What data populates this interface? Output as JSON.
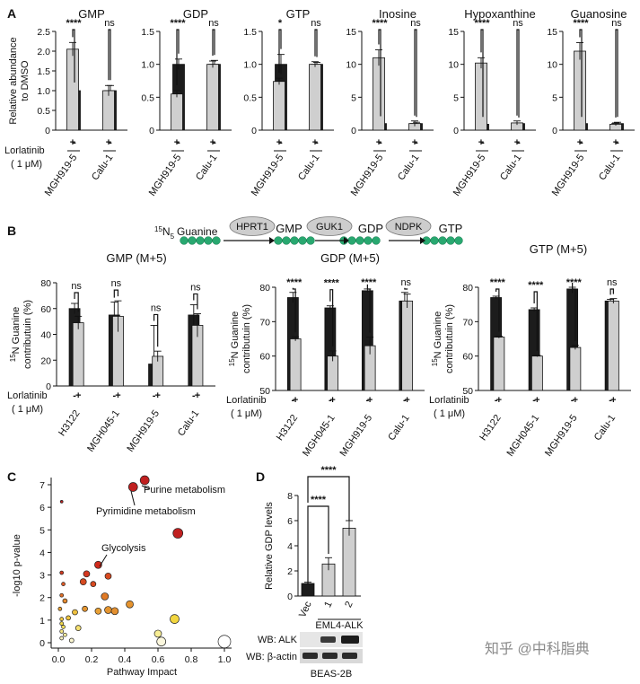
{
  "panelA": {
    "letter": "A",
    "ylabel": [
      "Relative abundance",
      "to DMSO"
    ],
    "drug_label": "Lorlatinib",
    "dose_label": "( 1 μM)",
    "pm": [
      "-",
      "+",
      "-",
      "+"
    ],
    "groups": [
      "MGH919-5",
      "Calu-1"
    ],
    "charts": [
      {
        "title": "GMP",
        "type": "bar",
        "ylim": [
          0,
          2.5
        ],
        "yticks": [
          0,
          0.5,
          1.0,
          1.5,
          2.0,
          2.5
        ],
        "tick_labels": [
          "0",
          "0.5",
          "1.0",
          "1.5",
          "2.0",
          "2.5"
        ],
        "values": [
          1.0,
          2.05,
          1.0,
          1.0
        ],
        "errors": [
          0.07,
          0.17,
          0.13,
          0.13
        ],
        "sig": [
          "****",
          "ns"
        ]
      },
      {
        "title": "GDP",
        "type": "bar",
        "ylim": [
          0,
          1.5
        ],
        "yticks": [
          0,
          0.5,
          1.0,
          1.5
        ],
        "tick_labels": [
          "0",
          "0.5",
          "1.0",
          "1.5"
        ],
        "values": [
          1.0,
          0.55,
          1.0,
          1.0
        ],
        "errors": [
          0.08,
          0.05,
          0.06,
          0.05
        ],
        "sig": [
          "****",
          "ns"
        ]
      },
      {
        "title": "GTP",
        "type": "bar",
        "ylim": [
          0,
          1.5
        ],
        "yticks": [
          0,
          0.5,
          1.0,
          1.5
        ],
        "tick_labels": [
          "0",
          "0.5",
          "1.0",
          "1.5"
        ],
        "values": [
          1.0,
          0.74,
          1.0,
          1.0
        ],
        "errors": [
          0.15,
          0.05,
          0.03,
          0.04
        ],
        "sig": [
          "*",
          "ns"
        ]
      },
      {
        "title": "Inosine",
        "type": "bar",
        "ylim": [
          0,
          15
        ],
        "yticks": [
          0,
          5,
          10,
          15
        ],
        "tick_labels": [
          "0",
          "5",
          "10",
          "15"
        ],
        "values": [
          1.0,
          11.0,
          1.0,
          1.0
        ],
        "errors": [
          0.3,
          1.2,
          0.2,
          0.4
        ],
        "sig": [
          "****",
          "ns"
        ]
      },
      {
        "title": "Hypoxanthine",
        "type": "bar",
        "ylim": [
          0,
          15
        ],
        "yticks": [
          0,
          5,
          10,
          15
        ],
        "tick_labels": [
          "0",
          "5",
          "10",
          "15"
        ],
        "values": [
          0.9,
          10.2,
          1.0,
          1.1
        ],
        "errors": [
          0.3,
          0.8,
          0.1,
          0.3
        ],
        "sig": [
          "****",
          "ns"
        ]
      },
      {
        "title": "Guanosine",
        "type": "bar",
        "ylim": [
          0,
          15
        ],
        "yticks": [
          0,
          5,
          10,
          15
        ],
        "tick_labels": [
          "0",
          "5",
          "10",
          "15"
        ],
        "values": [
          1.0,
          12.0,
          1.0,
          0.9
        ],
        "errors": [
          0.2,
          1.3,
          0.2,
          0.2
        ],
        "sig": [
          "****",
          "ns"
        ]
      }
    ]
  },
  "panelB": {
    "letter": "B",
    "pathway": {
      "label_start": "Guanine",
      "isotope_mass": "15",
      "isotope_element": "N",
      "isotope_count": "5",
      "enzymes": [
        "HPRT1",
        "GUK1",
        "NDPK"
      ],
      "metabolites": [
        "GMP",
        "GDP",
        "GTP"
      ]
    },
    "ylabel_isotope": "15",
    "ylabel_rest": "N Guanine",
    "ylabel_line2": "contributuin (%)",
    "drug_label": "Lorlatinib",
    "dose_label": "( 1 μM)",
    "pm": [
      "-",
      "+",
      "-",
      "+",
      "-",
      "+",
      "-",
      "+"
    ],
    "groups": [
      "H3122",
      "MGH045-1",
      "MGH919-5",
      "Calu-1"
    ],
    "charts": [
      {
        "title": "GMP (M+5)",
        "type": "bar",
        "ylim": [
          0,
          80
        ],
        "yticks": [
          0,
          20,
          40,
          60,
          80
        ],
        "tick_labels": [
          "0",
          "20",
          "40",
          "60",
          "80"
        ],
        "values": [
          60,
          49,
          55,
          54,
          17,
          23,
          55,
          47
        ],
        "errors": [
          4,
          5,
          10,
          12,
          30,
          4,
          8,
          9
        ],
        "sig": [
          "ns",
          "ns",
          "ns",
          "ns"
        ]
      },
      {
        "title": "GDP (M+5)",
        "type": "bar",
        "ylim": [
          50,
          80
        ],
        "yticks": [
          50,
          60,
          70,
          80
        ],
        "tick_labels": [
          "50",
          "60",
          "70",
          "80"
        ],
        "values": [
          77,
          65,
          74,
          60,
          79,
          63,
          76,
          76
        ],
        "errors": [
          1.5,
          0.6,
          0.6,
          1.5,
          0.5,
          2.5,
          2.5,
          2.0
        ],
        "sig": [
          "****",
          "****",
          "****",
          "ns"
        ]
      },
      {
        "title": "GTP (M+5)",
        "type": "bar",
        "ylim": [
          50,
          80
        ],
        "yticks": [
          50,
          60,
          70,
          80
        ],
        "tick_labels": [
          "50",
          "60",
          "70",
          "80"
        ],
        "values": [
          77,
          65.5,
          73.5,
          60,
          79.5,
          62.5,
          76,
          76
        ],
        "errors": [
          0.4,
          0.3,
          0.5,
          0.2,
          1.2,
          0.6,
          0.5,
          0.7
        ],
        "sig": [
          "****",
          "****",
          "****",
          "ns"
        ]
      }
    ]
  },
  "panelC": {
    "letter": "C",
    "chart_type": "scatter",
    "xlabel": "Pathway Impact",
    "ylabel": "-log10 p-value",
    "xlim": [
      0,
      1.0
    ],
    "ylim": [
      0,
      7
    ],
    "xticks": [
      0,
      0.2,
      0.4,
      0.6,
      0.8,
      1.0
    ],
    "xtick_labels": [
      "0.0",
      "0.2",
      "0.4",
      "0.6",
      "0.8",
      "1.0"
    ],
    "yticks": [
      0,
      1,
      2,
      3,
      4,
      5,
      6,
      7
    ],
    "tick_labels": [
      "0",
      "1",
      "2",
      "3",
      "4",
      "5",
      "6",
      "7"
    ],
    "annotations": [
      "Purine metabolism",
      "Pyrimidine metabolism",
      "Glycolysis"
    ],
    "points": [
      {
        "x": 0.52,
        "y": 7.2,
        "size": 5,
        "color": "#c02020"
      },
      {
        "x": 0.45,
        "y": 6.9,
        "size": 5,
        "color": "#c02020"
      },
      {
        "x": 0.72,
        "y": 4.85,
        "size": 5.5,
        "color": "#c02020"
      },
      {
        "x": 0.02,
        "y": 6.25,
        "size": 1.5,
        "color": "#c02020"
      },
      {
        "x": 0.24,
        "y": 3.45,
        "size": 4,
        "color": "#d02a1c"
      },
      {
        "x": 0.17,
        "y": 3.05,
        "size": 3.5,
        "color": "#d43820"
      },
      {
        "x": 0.15,
        "y": 2.7,
        "size": 3.5,
        "color": "#d54a20"
      },
      {
        "x": 0.3,
        "y": 2.95,
        "size": 3.5,
        "color": "#d84a20"
      },
      {
        "x": 0.21,
        "y": 2.6,
        "size": 3,
        "color": "#d84a20"
      },
      {
        "x": 0.02,
        "y": 3.1,
        "size": 2,
        "color": "#d23a20"
      },
      {
        "x": 0.03,
        "y": 2.6,
        "size": 2,
        "color": "#dd5a25"
      },
      {
        "x": 0.02,
        "y": 2.1,
        "size": 2,
        "color": "#e07028"
      },
      {
        "x": 0.28,
        "y": 2.05,
        "size": 4,
        "color": "#e07a26"
      },
      {
        "x": 0.04,
        "y": 1.85,
        "size": 2.5,
        "color": "#e38a30"
      },
      {
        "x": 0.43,
        "y": 1.7,
        "size": 4,
        "color": "#e5932d"
      },
      {
        "x": 0.01,
        "y": 1.5,
        "size": 2,
        "color": "#e8a035"
      },
      {
        "x": 0.16,
        "y": 1.5,
        "size": 3,
        "color": "#e49530"
      },
      {
        "x": 0.24,
        "y": 1.4,
        "size": 3.5,
        "color": "#e8a035"
      },
      {
        "x": 0.3,
        "y": 1.45,
        "size": 4,
        "color": "#e49530"
      },
      {
        "x": 0.34,
        "y": 1.4,
        "size": 4,
        "color": "#e39030"
      },
      {
        "x": 0.1,
        "y": 1.35,
        "size": 3,
        "color": "#eec040"
      },
      {
        "x": 0.06,
        "y": 1.1,
        "size": 2.5,
        "color": "#efc53f"
      },
      {
        "x": 0.02,
        "y": 1.05,
        "size": 2,
        "color": "#f0c840"
      },
      {
        "x": 0.7,
        "y": 1.05,
        "size": 5,
        "color": "#f2d640"
      },
      {
        "x": 0.02,
        "y": 0.85,
        "size": 2,
        "color": "#f2d94a"
      },
      {
        "x": 0.03,
        "y": 0.7,
        "size": 2,
        "color": "#f4df5a"
      },
      {
        "x": 0.12,
        "y": 0.65,
        "size": 3,
        "color": "#f5e070"
      },
      {
        "x": 0.02,
        "y": 0.5,
        "size": 2,
        "color": "#f6e680"
      },
      {
        "x": 0.04,
        "y": 0.35,
        "size": 2,
        "color": "#f7eb9a"
      },
      {
        "x": 0.6,
        "y": 0.4,
        "size": 4,
        "color": "#f8ee95"
      },
      {
        "x": 0.02,
        "y": 0.2,
        "size": 2,
        "color": "#faf3c0"
      },
      {
        "x": 0.08,
        "y": 0.1,
        "size": 2.5,
        "color": "#fbf6d0"
      },
      {
        "x": 0.62,
        "y": 0.05,
        "size": 5,
        "color": "#fcf8de"
      },
      {
        "x": 1.0,
        "y": 0.05,
        "size": 7,
        "color": "#ffffff"
      }
    ]
  },
  "panelD": {
    "letter": "D",
    "chart_type": "bar",
    "ylabel": "Relative GDP levels",
    "ylim": [
      0,
      8
    ],
    "yticks": [
      0,
      2,
      4,
      6,
      8
    ],
    "tick_labels": [
      "0",
      "2",
      "4",
      "6",
      "8"
    ],
    "categories": [
      "Vec",
      "1",
      "2"
    ],
    "values": [
      1.0,
      2.55,
      5.4
    ],
    "errors": [
      0.1,
      0.5,
      0.6
    ],
    "sig": [
      "****",
      "****"
    ],
    "group_label": "EML4-ALK",
    "blot_labels": [
      "WB: ALK",
      "WB: β-actin"
    ],
    "cell_line": "BEAS-2B"
  },
  "watermark": "知乎 @中科脂典"
}
